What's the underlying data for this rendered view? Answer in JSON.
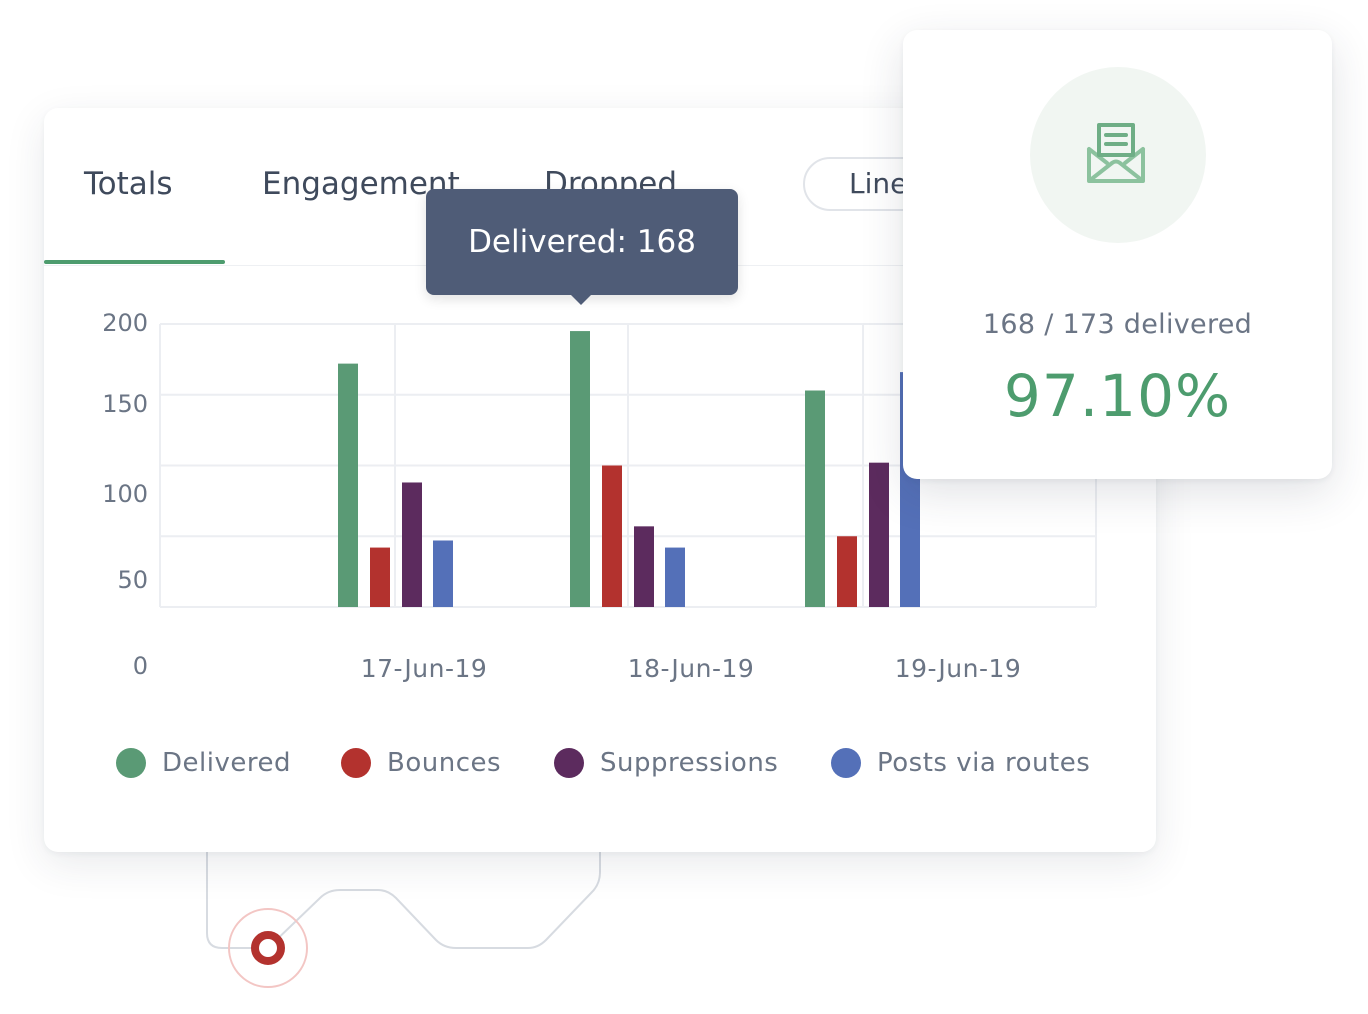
{
  "tabs": [
    {
      "label": "Totals",
      "active": true
    },
    {
      "label": "Engagement",
      "active": false
    },
    {
      "label": "Dropped",
      "active": false
    }
  ],
  "view_toggle": {
    "label": "Line"
  },
  "tooltip": {
    "text": "Delivered: 168"
  },
  "stat_card": {
    "icon": "envelope-icon",
    "caption": "168 / 173 delivered",
    "value": "97.10%"
  },
  "colors": {
    "delivered": "#5a9a75",
    "bounces": "#b3322e",
    "suppressions": "#5c2b5e",
    "posts_via_routes": "#5470b8",
    "accent": "#4d9c6e"
  },
  "chart_data": {
    "type": "bar",
    "categories": [
      "17-Jun-19",
      "18-Jun-19",
      "19-Jun-19"
    ],
    "y_ticks": [
      "0",
      "50",
      "100",
      "150",
      "200"
    ],
    "series": [
      {
        "name": "Delivered",
        "color": "#5a9a75",
        "values": [
          172,
          195,
          153
        ]
      },
      {
        "name": "Bounces",
        "color": "#b3322e",
        "values": [
          42,
          100,
          50
        ]
      },
      {
        "name": "Suppressions",
        "color": "#5c2b5e",
        "values": [
          88,
          57,
          102
        ]
      },
      {
        "name": "Posts via routes",
        "color": "#5470b8",
        "values": [
          47,
          42,
          166
        ]
      }
    ],
    "legend_position": "bottom",
    "grid": true
  }
}
